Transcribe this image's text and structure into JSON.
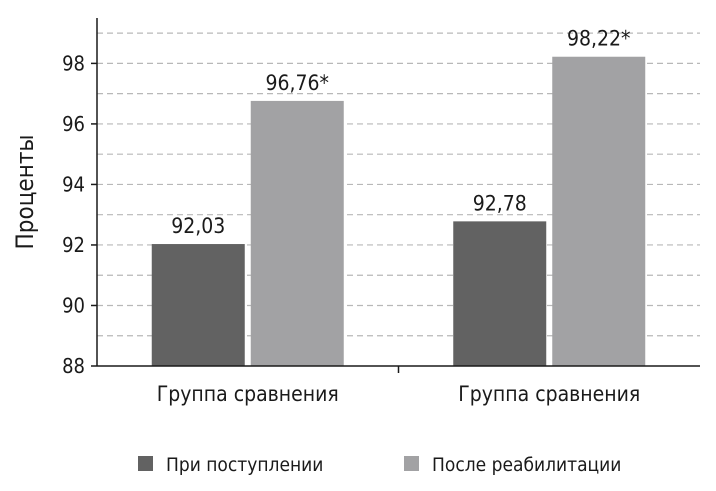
{
  "chart_data": {
    "type": "bar",
    "categories": [
      "Группа сравнения",
      "Группа сравнения"
    ],
    "series": [
      {
        "name": "При поступлении",
        "values": [
          92.03,
          92.78
        ],
        "labels": [
          "92,03",
          "92,78"
        ],
        "color": "#626262"
      },
      {
        "name": "После реабилитации",
        "values": [
          96.76,
          98.22
        ],
        "labels": [
          "96,76*",
          "98,22*"
        ],
        "color": "#a2a2a4"
      }
    ],
    "ylabel": "Проценты",
    "xlabel": "",
    "ylim": [
      88,
      99.5
    ],
    "yticks": [
      88,
      90,
      92,
      94,
      96,
      98
    ],
    "grid": true,
    "legend_position": "bottom"
  }
}
